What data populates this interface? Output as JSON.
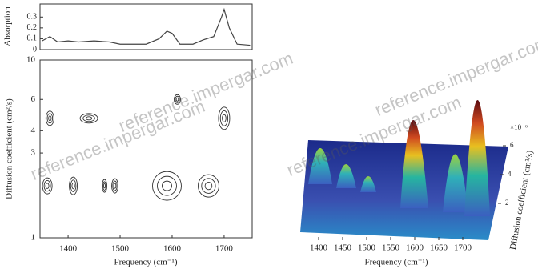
{
  "chart_data": [
    {
      "type": "line",
      "y_label": "Absorption",
      "x": [
        1350,
        1365,
        1380,
        1400,
        1420,
        1450,
        1480,
        1500,
        1520,
        1550,
        1575,
        1590,
        1600,
        1615,
        1640,
        1660,
        1680,
        1695,
        1700,
        1710,
        1725,
        1750
      ],
      "values": [
        0.08,
        0.12,
        0.07,
        0.08,
        0.07,
        0.08,
        0.07,
        0.05,
        0.05,
        0.05,
        0.1,
        0.17,
        0.15,
        0.05,
        0.05,
        0.09,
        0.12,
        0.3,
        0.37,
        0.2,
        0.05,
        0.04
      ],
      "color": "#444444",
      "xlim": [
        1346,
        1754
      ],
      "ylim": [
        0,
        0.42
      ],
      "yticks": [
        0,
        0.1,
        0.2,
        0.3
      ]
    },
    {
      "type": "contour",
      "x_label": "Frequency (cm⁻¹)",
      "y_label": "Diffusion coefficient (cm²/s)",
      "x": [
        1365,
        1440,
        1700,
        1610,
        1360,
        1410,
        1470,
        1490,
        1590,
        1670
      ],
      "values": [
        4.7,
        4.7,
        4.7,
        6.0,
        1.96,
        1.96,
        1.96,
        1.96,
        1.96,
        1.96
      ],
      "color": "#333333",
      "xlim": [
        1346,
        1754
      ],
      "ylim": [
        1,
        10
      ],
      "log_y": true,
      "xticks": [
        1400,
        1500,
        1600,
        1700
      ],
      "yticks": [
        1,
        3,
        4,
        6,
        10
      ]
    },
    {
      "type": "surface3d",
      "x_label": "Frequency (cm⁻¹)",
      "y_label": "Diffusion coefficient (cm²/s)",
      "y_multiplier": "×10⁻⁶",
      "xticks": [
        1400,
        1450,
        1500,
        1550,
        1600,
        1650,
        1700
      ],
      "yticks": [
        2,
        4,
        6
      ]
    }
  ],
  "watermark": "reference.impergar.com"
}
